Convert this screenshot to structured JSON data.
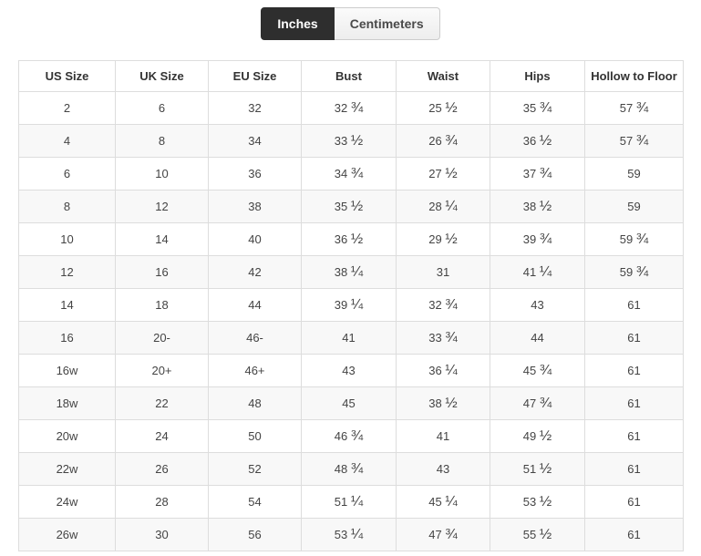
{
  "tabs": {
    "inches_label": "Inches",
    "centimeters_label": "Centimeters",
    "active": "Inches"
  },
  "colors": {
    "active_tab_bg": "#2e2e2e",
    "active_tab_text": "#ffffff",
    "inactive_tab_border": "#cccccc",
    "table_border": "#dddddd",
    "zebra_row_bg": "#f8f8f8"
  },
  "table": {
    "headers": [
      "US Size",
      "UK Size",
      "EU Size",
      "Bust",
      "Waist",
      "Hips",
      "Hollow to Floor"
    ],
    "rows": [
      [
        "2",
        "6",
        "32",
        "32 ¾",
        "25 ½",
        "35 ¾",
        "57 ¾"
      ],
      [
        "4",
        "8",
        "34",
        "33 ½",
        "26 ¾",
        "36 ½",
        "57 ¾"
      ],
      [
        "6",
        "10",
        "36",
        "34 ¾",
        "27 ½",
        "37 ¾",
        "59"
      ],
      [
        "8",
        "12",
        "38",
        "35 ½",
        "28 ¼",
        "38 ½",
        "59"
      ],
      [
        "10",
        "14",
        "40",
        "36 ½",
        "29 ½",
        "39 ¾",
        "59 ¾"
      ],
      [
        "12",
        "16",
        "42",
        "38 ¼",
        "31",
        "41 ¼",
        "59 ¾"
      ],
      [
        "14",
        "18",
        "44",
        "39 ¼",
        "32 ¾",
        "43",
        "61"
      ],
      [
        "16",
        "20-",
        "46-",
        "41",
        "33 ¾",
        "44",
        "61"
      ],
      [
        "16w",
        "20+",
        "46+",
        "43",
        "36 ¼",
        "45 ¾",
        "61"
      ],
      [
        "18w",
        "22",
        "48",
        "45",
        "38 ½",
        "47 ¾",
        "61"
      ],
      [
        "20w",
        "24",
        "50",
        "46 ¾",
        "41",
        "49 ½",
        "61"
      ],
      [
        "22w",
        "26",
        "52",
        "48 ¾",
        "43",
        "51 ½",
        "61"
      ],
      [
        "24w",
        "28",
        "54",
        "51 ¼",
        "45 ¼",
        "53 ½",
        "61"
      ],
      [
        "26w",
        "30",
        "56",
        "53 ¼",
        "47 ¾",
        "55 ½",
        "61"
      ]
    ]
  }
}
